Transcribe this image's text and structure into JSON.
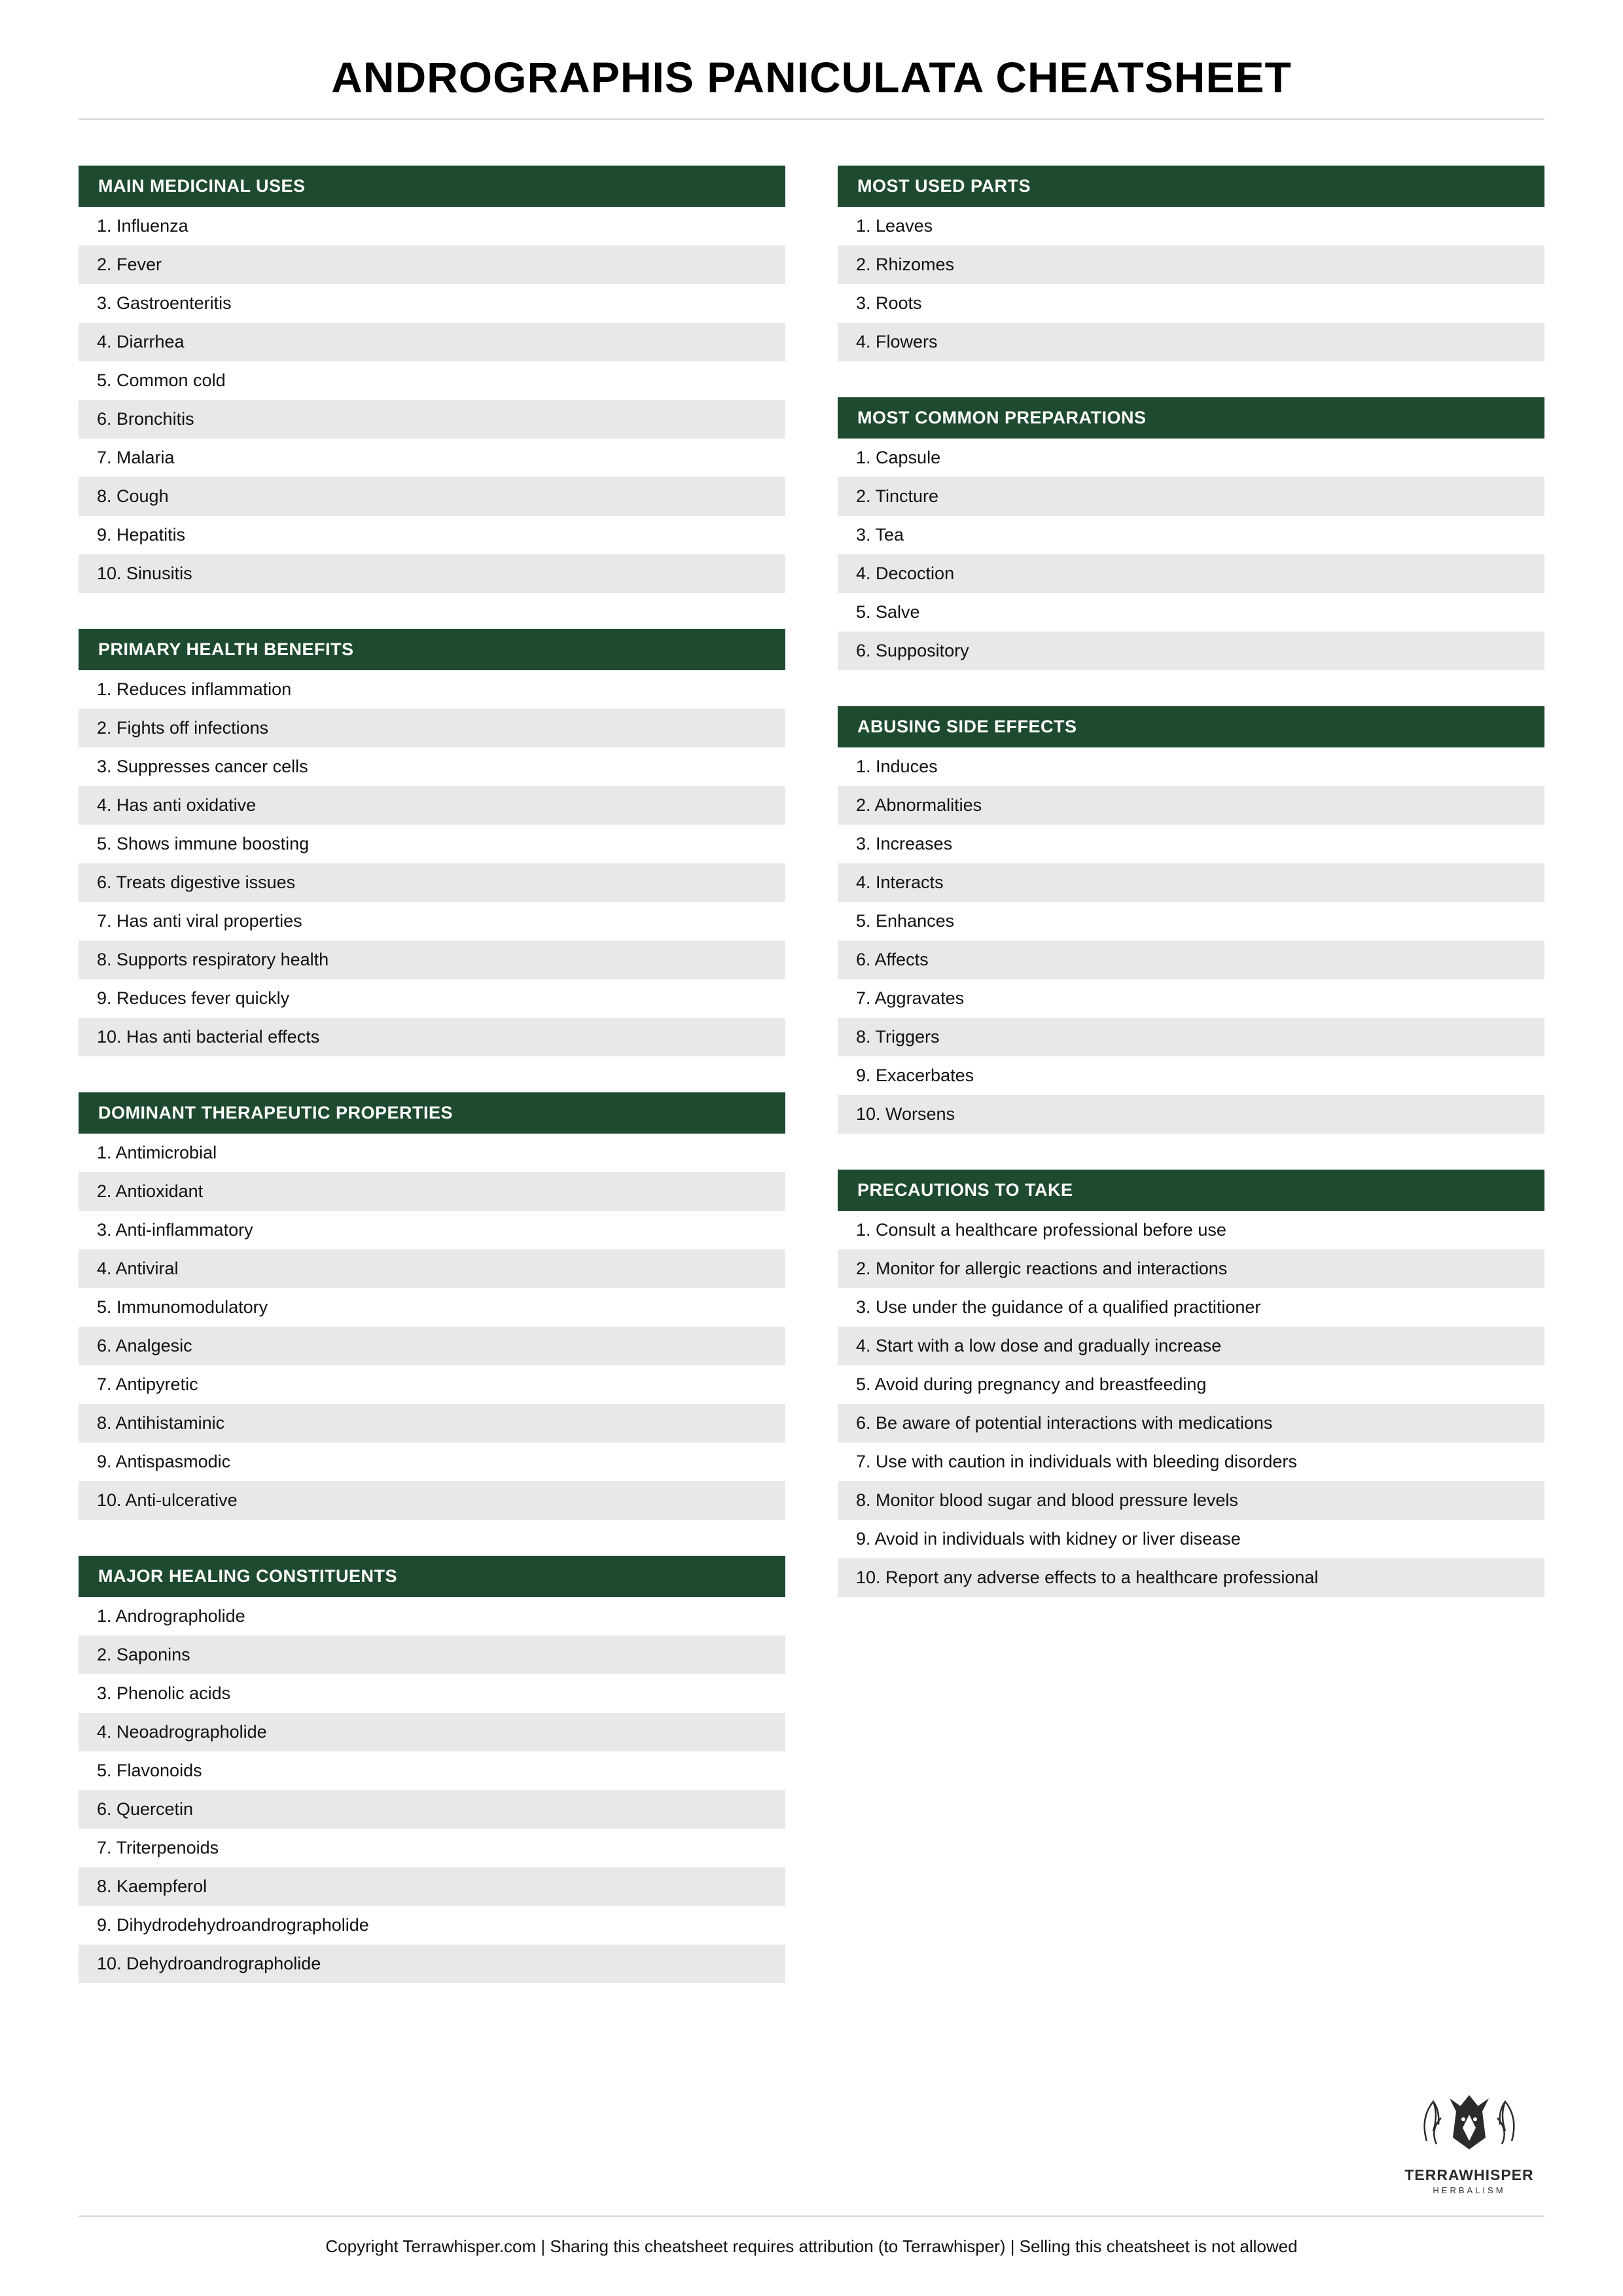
{
  "title": "ANDROGRAPHIS PANICULATA CHEATSHEET",
  "colors": {
    "header_bg": "#1e4a2f",
    "header_text": "#ffffff",
    "row_even_bg": "#e8e8e8",
    "row_odd_bg": "#ffffff",
    "text": "#111111",
    "rule": "#d5d5d5"
  },
  "left_sections": [
    {
      "title": "MAIN MEDICINAL USES",
      "items": [
        "Influenza",
        "Fever",
        "Gastroenteritis",
        "Diarrhea",
        "Common cold",
        "Bronchitis",
        "Malaria",
        "Cough",
        "Hepatitis",
        "Sinusitis"
      ]
    },
    {
      "title": "PRIMARY HEALTH BENEFITS",
      "items": [
        "Reduces inflammation",
        "Fights off infections",
        "Suppresses cancer cells",
        "Has anti oxidative",
        "Shows immune boosting",
        "Treats digestive issues",
        "Has anti viral properties",
        "Supports respiratory health",
        "Reduces fever quickly",
        "Has anti bacterial effects"
      ]
    },
    {
      "title": "DOMINANT THERAPEUTIC PROPERTIES",
      "items": [
        "Antimicrobial",
        "Antioxidant",
        "Anti-inflammatory",
        "Antiviral",
        "Immunomodulatory",
        "Analgesic",
        "Antipyretic",
        "Antihistaminic",
        "Antispasmodic",
        "Anti-ulcerative"
      ]
    },
    {
      "title": "MAJOR HEALING CONSTITUENTS",
      "items": [
        "Andrographolide",
        "Saponins",
        "Phenolic acids",
        "Neoadrographolide",
        "Flavonoids",
        "Quercetin",
        "Triterpenoids",
        "Kaempferol",
        "Dihydrodehydroandrographolide",
        "Dehydroandrographolide"
      ]
    }
  ],
  "right_sections": [
    {
      "title": "MOST USED PARTS",
      "items": [
        "Leaves",
        "Rhizomes",
        "Roots",
        "Flowers"
      ]
    },
    {
      "title": "MOST COMMON PREPARATIONS",
      "items": [
        "Capsule",
        "Tincture",
        "Tea",
        "Decoction",
        "Salve",
        "Suppository"
      ]
    },
    {
      "title": "ABUSING SIDE EFFECTS",
      "items": [
        "Induces",
        "Abnormalities",
        "Increases",
        "Interacts",
        "Enhances",
        "Affects",
        "Aggravates",
        "Triggers",
        "Exacerbates",
        "Worsens"
      ]
    },
    {
      "title": "PRECAUTIONS TO TAKE",
      "items": [
        "Consult a healthcare professional before use",
        "Monitor for allergic reactions and interactions",
        "Use under the guidance of a qualified practitioner",
        "Start with a low dose and gradually increase",
        "Avoid during pregnancy and breastfeeding",
        "Be aware of potential interactions with medications",
        "Use with caution in individuals with bleeding disorders",
        "Monitor blood sugar and blood pressure levels",
        "Avoid in individuals with kidney or liver disease",
        "Report any adverse effects to a healthcare professional"
      ]
    }
  ],
  "brand": {
    "name": "TERRAWHISPER",
    "sub": "HERBALISM"
  },
  "copyright": "Copyright Terrawhisper.com | Sharing this cheatsheet requires attribution (to Terrawhisper) | Selling this cheatsheet is not allowed"
}
